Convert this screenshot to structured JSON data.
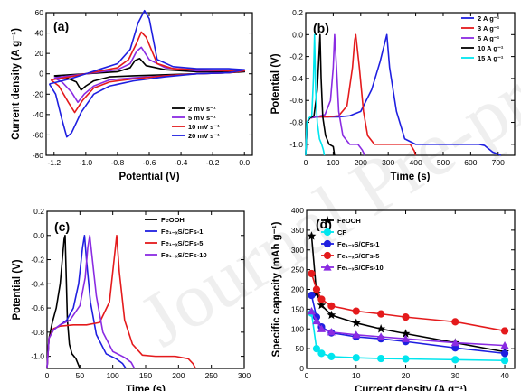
{
  "watermark": "Journal Pre-proofs",
  "chart_data": [
    {
      "id": "a",
      "panel_label": "(a)",
      "type": "line",
      "xlabel": "Potential (V)",
      "ylabel": "Current density (A g⁻¹)",
      "xlim": [
        -1.25,
        0.05
      ],
      "ylim": [
        -80,
        60
      ],
      "xticks": [
        -1.2,
        -1.0,
        -0.8,
        -0.6,
        -0.4,
        -0.2,
        0.0
      ],
      "xtick_labels": [
        "-1.2",
        "-1.0",
        "-0.8",
        "-0.6",
        "-0.4",
        "-0.2",
        "0.0"
      ],
      "yticks": [
        -80,
        -60,
        -40,
        -20,
        0,
        20,
        40,
        60
      ],
      "ytick_labels": [
        "-80",
        "-60",
        "-40",
        "-20",
        "0",
        "20",
        "40",
        "60"
      ],
      "legend_position": "bottom-right",
      "series": [
        {
          "name": "2 mV s⁻¹",
          "color": "#000000",
          "x": [
            -1.2,
            -1.1,
            -1.0,
            -0.9,
            -0.8,
            -0.72,
            -0.69,
            -0.66,
            -0.62,
            -0.5,
            -0.3,
            -0.1,
            0.0,
            -0.1,
            -0.3,
            -0.5,
            -0.7,
            -0.85,
            -0.95,
            -1.0,
            -1.03,
            -1.06,
            -1.12,
            -1.2
          ],
          "y": [
            -2,
            -1,
            0,
            1,
            2,
            6,
            13,
            15,
            8,
            4,
            2,
            2,
            2,
            1,
            0,
            -1,
            -2,
            -3,
            -7,
            -12,
            -16,
            -8,
            -4,
            -2
          ]
        },
        {
          "name": "5 mV s⁻¹",
          "color": "#8a2be2",
          "x": [
            -1.2,
            -1.1,
            -1.0,
            -0.9,
            -0.8,
            -0.72,
            -0.68,
            -0.65,
            -0.6,
            -0.5,
            -0.3,
            -0.1,
            0.0,
            -0.1,
            -0.3,
            -0.5,
            -0.7,
            -0.85,
            -0.95,
            -1.01,
            -1.05,
            -1.09,
            -1.15,
            -1.2
          ],
          "y": [
            -4,
            -2,
            0,
            2,
            4,
            10,
            22,
            26,
            14,
            6,
            3,
            3,
            3,
            1,
            0,
            -2,
            -4,
            -6,
            -12,
            -20,
            -28,
            -18,
            -8,
            -4
          ]
        },
        {
          "name": "10 mV s⁻¹",
          "color": "#e41a1c",
          "x": [
            -1.22,
            -1.1,
            -1.0,
            -0.9,
            -0.8,
            -0.73,
            -0.68,
            -0.65,
            -0.62,
            -0.55,
            -0.45,
            -0.3,
            -0.1,
            0.0,
            -0.1,
            -0.3,
            -0.5,
            -0.7,
            -0.85,
            -0.95,
            -1.02,
            -1.07,
            -1.11,
            -1.17,
            -1.22
          ],
          "y": [
            -6,
            -3,
            0,
            3,
            6,
            14,
            30,
            41,
            36,
            10,
            5,
            4,
            3,
            3,
            1,
            0,
            -2,
            -5,
            -8,
            -14,
            -26,
            -38,
            -28,
            -12,
            -6
          ]
        },
        {
          "name": "20 mV s⁻¹",
          "color": "#1f1fe0",
          "x": [
            -1.23,
            -1.1,
            -1.0,
            -0.9,
            -0.8,
            -0.72,
            -0.67,
            -0.63,
            -0.6,
            -0.55,
            -0.45,
            -0.3,
            -0.1,
            0.0,
            -0.1,
            -0.3,
            -0.5,
            -0.7,
            -0.85,
            -0.95,
            -1.03,
            -1.09,
            -1.12,
            -1.15,
            -1.19,
            -1.23
          ],
          "y": [
            -10,
            -5,
            0,
            5,
            10,
            24,
            50,
            62,
            54,
            14,
            7,
            5,
            5,
            4,
            1,
            0,
            -3,
            -7,
            -12,
            -20,
            -38,
            -58,
            -62,
            -45,
            -20,
            -10
          ]
        }
      ]
    },
    {
      "id": "b",
      "panel_label": "(b)",
      "type": "line",
      "xlabel": "Time (s)",
      "ylabel": "Potential (V)",
      "xlim": [
        0,
        760
      ],
      "ylim": [
        -1.1,
        0.2
      ],
      "xticks": [
        0,
        100,
        200,
        300,
        400,
        500,
        600,
        700
      ],
      "xtick_labels": [
        "0",
        "100",
        "200",
        "300",
        "400",
        "500",
        "600",
        "700"
      ],
      "yticks": [
        -1.0,
        -0.8,
        -0.6,
        -0.4,
        -0.2,
        0.0,
        0.2
      ],
      "ytick_labels": [
        "-1.0",
        "-0.8",
        "-0.6",
        "-0.4",
        "-0.2",
        "0.0",
        "0.2"
      ],
      "legend_position": "top-right",
      "series": [
        {
          "name": "2 A g⁻¹",
          "color": "#1f1fe0",
          "x": [
            0,
            5,
            15,
            40,
            80,
            120,
            160,
            200,
            240,
            270,
            290,
            295,
            305,
            330,
            360,
            400,
            450,
            500,
            550,
            600,
            630,
            650,
            660,
            680,
            700,
            710
          ],
          "y": [
            -1.1,
            -0.8,
            -0.76,
            -0.75,
            -0.75,
            -0.75,
            -0.74,
            -0.7,
            -0.5,
            -0.25,
            -0.05,
            0.0,
            -0.3,
            -0.7,
            -0.95,
            -1.0,
            -1.0,
            -1.0,
            -1.0,
            -1.0,
            -1.0,
            -1.01,
            -1.03,
            -1.07,
            -1.09,
            -1.1
          ]
        },
        {
          "name": "3 A g⁻¹",
          "color": "#e41a1c",
          "x": [
            0,
            5,
            15,
            40,
            80,
            120,
            150,
            170,
            178,
            182,
            195,
            210,
            225,
            250,
            300,
            350,
            380,
            395,
            400
          ],
          "y": [
            -1.1,
            -0.8,
            -0.76,
            -0.75,
            -0.75,
            -0.74,
            -0.65,
            -0.3,
            -0.05,
            0.0,
            -0.3,
            -0.7,
            -0.92,
            -1.0,
            -1.0,
            -1.0,
            -1.0,
            -1.06,
            -1.1
          ]
        },
        {
          "name": "5 A g⁻¹",
          "color": "#8a2be2",
          "x": [
            0,
            5,
            15,
            40,
            70,
            90,
            100,
            105,
            112,
            120,
            135,
            160,
            190,
            205,
            215
          ],
          "y": [
            -1.1,
            -0.8,
            -0.76,
            -0.75,
            -0.73,
            -0.6,
            -0.3,
            0.0,
            -0.3,
            -0.7,
            -0.92,
            -1.0,
            -1.0,
            -1.05,
            -1.1
          ]
        },
        {
          "name": "10 A g⁻¹",
          "color": "#000000",
          "x": [
            0,
            5,
            15,
            30,
            42,
            48,
            52,
            56,
            62,
            72,
            85,
            100,
            105
          ],
          "y": [
            -1.1,
            -0.8,
            -0.76,
            -0.74,
            -0.5,
            -0.2,
            0.0,
            -0.4,
            -0.75,
            -0.92,
            -1.0,
            -1.02,
            -1.1
          ]
        },
        {
          "name": "15 A g⁻¹",
          "color": "#00e5ee",
          "x": [
            0,
            4,
            12,
            22,
            28,
            32,
            36,
            42,
            50,
            58,
            64,
            68
          ],
          "y": [
            -1.1,
            -0.8,
            -0.76,
            -0.74,
            -0.4,
            0.0,
            -0.5,
            -0.8,
            -0.95,
            -1.0,
            -1.05,
            -1.1
          ]
        }
      ]
    },
    {
      "id": "c",
      "panel_label": "(c)",
      "type": "line",
      "xlabel": "Time (s)",
      "ylabel": "Potential (V)",
      "xlim": [
        0,
        300
      ],
      "ylim": [
        -1.1,
        0.2
      ],
      "xticks": [
        0,
        50,
        100,
        150,
        200,
        250,
        300
      ],
      "xtick_labels": [
        "0",
        "50",
        "100",
        "150",
        "200",
        "250",
        "300"
      ],
      "yticks": [
        -1.0,
        -0.8,
        -0.6,
        -0.4,
        -0.2,
        0.0,
        0.2
      ],
      "ytick_labels": [
        "-1.0",
        "-0.8",
        "-0.6",
        "-0.4",
        "-0.2",
        "0.0",
        "0.2"
      ],
      "legend_position": "top-right",
      "series": [
        {
          "name": "FeOOH",
          "color": "#000000",
          "x": [
            0,
            3,
            8,
            14,
            20,
            24,
            26,
            27.5,
            29,
            31,
            34,
            38,
            44,
            50
          ],
          "y": [
            -1.1,
            -0.85,
            -0.72,
            -0.6,
            -0.4,
            -0.15,
            -0.03,
            0.0,
            -0.3,
            -0.7,
            -0.9,
            -0.98,
            -1.02,
            -1.1
          ]
        },
        {
          "name": "Fe₁₋ₓS/CFs-1",
          "color": "#1f1fe0",
          "x": [
            0,
            3,
            10,
            20,
            30,
            40,
            48,
            54,
            57,
            60,
            66,
            75,
            90,
            105,
            115,
            120
          ],
          "y": [
            -1.1,
            -0.85,
            -0.78,
            -0.74,
            -0.7,
            -0.6,
            -0.4,
            -0.1,
            0.0,
            -0.2,
            -0.55,
            -0.82,
            -0.98,
            -1.02,
            -1.06,
            -1.1
          ]
        },
        {
          "name": "Fe₁₋ₓS/CFs-5",
          "color": "#e41a1c",
          "x": [
            0,
            3,
            10,
            20,
            40,
            60,
            80,
            95,
            102,
            106,
            110,
            118,
            130,
            145,
            165,
            195,
            215,
            222,
            226
          ],
          "y": [
            -1.1,
            -0.85,
            -0.77,
            -0.75,
            -0.74,
            -0.74,
            -0.72,
            -0.55,
            -0.2,
            0.0,
            -0.3,
            -0.7,
            -0.9,
            -0.99,
            -1.0,
            -1.0,
            -1.02,
            -1.06,
            -1.1
          ]
        },
        {
          "name": "Fe₁₋ₓS/CFs-10",
          "color": "#8a2be2",
          "x": [
            0,
            3,
            10,
            20,
            35,
            50,
            58,
            62,
            65,
            68,
            75,
            85,
            100,
            118,
            128,
            133
          ],
          "y": [
            -1.1,
            -0.85,
            -0.78,
            -0.74,
            -0.7,
            -0.58,
            -0.35,
            -0.1,
            0.0,
            -0.15,
            -0.5,
            -0.8,
            -0.96,
            -1.01,
            -1.05,
            -1.1
          ]
        }
      ]
    },
    {
      "id": "d",
      "panel_label": "(d)",
      "type": "line",
      "xlabel": "Current density (A g⁻¹)",
      "ylabel": "Specific capacity (mAh g⁻¹)",
      "xlim": [
        0,
        42
      ],
      "ylim": [
        0,
        400
      ],
      "xticks": [
        0,
        10,
        20,
        30,
        40
      ],
      "xtick_labels": [
        "0",
        "10",
        "20",
        "30",
        "40"
      ],
      "yticks": [
        0,
        50,
        100,
        150,
        200,
        250,
        300,
        350,
        400
      ],
      "ytick_labels": [
        "0",
        "50",
        "100",
        "150",
        "200",
        "250",
        "300",
        "350",
        "400"
      ],
      "legend_position": "top-right",
      "series": [
        {
          "name": "FeOOH",
          "color": "#000000",
          "marker": "star",
          "x": [
            1,
            2,
            3,
            5,
            10,
            15,
            20,
            30,
            40
          ],
          "y": [
            335,
            190,
            160,
            135,
            115,
            100,
            88,
            65,
            42
          ]
        },
        {
          "name": "CF",
          "color": "#00e5ee",
          "marker": "circle",
          "x": [
            1,
            2,
            3,
            5,
            10,
            15,
            20,
            30,
            40
          ],
          "y": [
            140,
            50,
            38,
            30,
            27,
            25,
            24,
            22,
            20
          ]
        },
        {
          "name": "Fe₁₋ₓS/CFs-1",
          "color": "#1f1fe0",
          "marker": "circle",
          "x": [
            1,
            2,
            3,
            5,
            10,
            15,
            20,
            30,
            40
          ],
          "y": [
            185,
            130,
            105,
            90,
            80,
            75,
            68,
            52,
            38
          ]
        },
        {
          "name": "Fe₁₋ₓS/CFs-5",
          "color": "#e41a1c",
          "marker": "circle",
          "x": [
            1,
            2,
            3,
            5,
            10,
            15,
            20,
            30,
            40
          ],
          "y": [
            240,
            200,
            175,
            158,
            145,
            138,
            130,
            118,
            95
          ]
        },
        {
          "name": "Fe₁₋ₓS/CFs-10",
          "color": "#8a2be2",
          "marker": "triangle",
          "x": [
            1,
            2,
            3,
            5,
            10,
            15,
            20,
            30,
            40
          ],
          "y": [
            145,
            120,
            100,
            92,
            85,
            80,
            75,
            65,
            58
          ]
        }
      ]
    }
  ]
}
